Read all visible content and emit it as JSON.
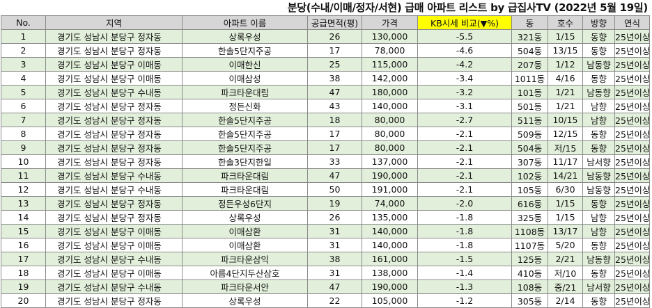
{
  "title": "분당(수내/이매/정자/서현)  급매 아파트 리스트 by 급집사TV (2022년 5월 19일)",
  "headers": [
    "No.",
    "지역",
    "아파트 이름",
    "공급면적(평)",
    "가격",
    "KB시세 비교(▼%)",
    "동",
    "호수",
    "방향",
    "연식"
  ],
  "highlight_color": "#ffff00",
  "alt_row_color": "#e2efda",
  "rows": [
    [
      "1",
      "경기도 성남시 분당구 정자동",
      "상록우성",
      "26",
      "130,000",
      "-5.5",
      "321동",
      "1/15",
      "동향",
      "25년이상"
    ],
    [
      "2",
      "경기도 성남시 분당구 정자동",
      "한솔5단지주공",
      "17",
      "78,000",
      "-4.6",
      "504동",
      "13/15",
      "동향",
      "25년이상"
    ],
    [
      "3",
      "경기도 성남시 분당구 이매동",
      "이매한신",
      "25",
      "115,000",
      "-4.2",
      "207동",
      "1/12",
      "남동향",
      "25년이상"
    ],
    [
      "4",
      "경기도 성남시 분당구 이매동",
      "이매삼성",
      "38",
      "142,000",
      "-3.4",
      "1011동",
      "4/16",
      "동향",
      "25년이상"
    ],
    [
      "5",
      "경기도 성남시 분당구 수내동",
      "파크타운대림",
      "47",
      "180,000",
      "-3.2",
      "101동",
      "1/21",
      "남동향",
      "25년이상"
    ],
    [
      "6",
      "경기도 성남시 분당구 정자동",
      "정든신화",
      "43",
      "140,000",
      "-3.1",
      "501동",
      "1/21",
      "남향",
      "25년이상"
    ],
    [
      "7",
      "경기도 성남시 분당구 정자동",
      "한솔5단지주공",
      "18",
      "80,000",
      "-2.7",
      "511동",
      "10/15",
      "남향",
      "25년이상"
    ],
    [
      "8",
      "경기도 성남시 분당구 정자동",
      "한솔5단지주공",
      "17",
      "80,000",
      "-2.1",
      "509동",
      "12/15",
      "동향",
      "25년이상"
    ],
    [
      "9",
      "경기도 성남시 분당구 정자동",
      "한솔5단지주공",
      "17",
      "80,000",
      "-2.1",
      "504동",
      "저/15",
      "동향",
      "25년이상"
    ],
    [
      "10",
      "경기도 성남시 분당구 정자동",
      "한솔3단지한일",
      "33",
      "137,000",
      "-2.1",
      "307동",
      "11/17",
      "남서향",
      "25년이상"
    ],
    [
      "11",
      "경기도 성남시 분당구 수내동",
      "파크타운대림",
      "47",
      "190,000",
      "-2.1",
      "102동",
      "14/21",
      "남동향",
      "25년이상"
    ],
    [
      "12",
      "경기도 성남시 분당구 수내동",
      "파크타운대림",
      "50",
      "191,000",
      "-2.1",
      "105동",
      "6/30",
      "남동향",
      "25년이상"
    ],
    [
      "13",
      "경기도 성남시 분당구 정자동",
      "정든우성6단지",
      "19",
      "74,000",
      "-2.0",
      "616동",
      "1/15",
      "동향",
      "25년이상"
    ],
    [
      "14",
      "경기도 성남시 분당구 정자동",
      "상록우성",
      "26",
      "135,000",
      "-1.8",
      "325동",
      "1/15",
      "남향",
      "25년이상"
    ],
    [
      "15",
      "경기도 성남시 분당구 이매동",
      "이매삼환",
      "31",
      "140,000",
      "-1.8",
      "1108동",
      "13/17",
      "남향",
      "25년이상"
    ],
    [
      "16",
      "경기도 성남시 분당구 이매동",
      "이매삼환",
      "31",
      "140,000",
      "-1.8",
      "1107동",
      "5/20",
      "동향",
      "25년이상"
    ],
    [
      "17",
      "경기도 성남시 분당구 수내동",
      "파크타운삼익",
      "38",
      "161,000",
      "-1.5",
      "125동",
      "2/21",
      "남동향",
      "25년이상"
    ],
    [
      "18",
      "경기도 성남시 분당구 이매동",
      "아름4단지두산삼호",
      "31",
      "138,000",
      "-1.4",
      "410동",
      "저/10",
      "동향",
      "25년이상"
    ],
    [
      "19",
      "경기도 성남시 분당구 수내동",
      "파크타운서안",
      "47",
      "190,000",
      "-1.3",
      "108동",
      "중/21",
      "남서향",
      "25년이상"
    ],
    [
      "20",
      "경기도 성남시 분당구 정자동",
      "상록우성",
      "22",
      "105,000",
      "-1.2",
      "305동",
      "2/14",
      "동향",
      "25년이상"
    ]
  ]
}
